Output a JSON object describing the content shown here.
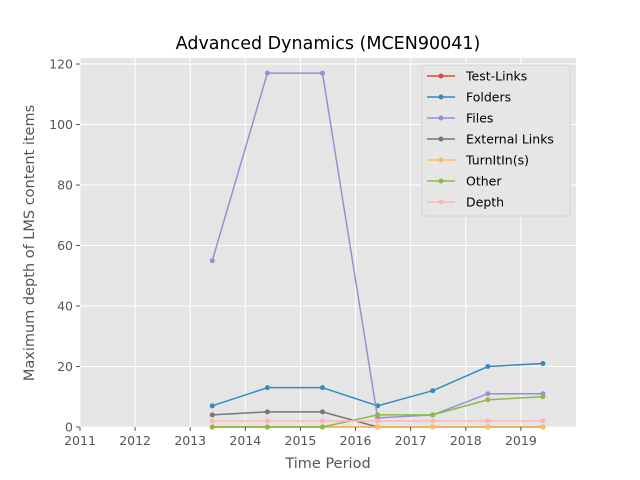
{
  "chart_data": {
    "type": "line",
    "title": "Advanced Dynamics (MCEN90041)",
    "xlabel": "Time Period",
    "ylabel": "Maximum depth of LMS content items",
    "xlim": [
      2011,
      2020
    ],
    "ylim": [
      0,
      122
    ],
    "x_ticks": [
      2011,
      2012,
      2013,
      2014,
      2015,
      2016,
      2017,
      2018,
      2019
    ],
    "y_ticks": [
      0,
      20,
      40,
      60,
      80,
      100,
      120
    ],
    "grid": true,
    "legend_position": "upper-right",
    "x": [
      2013.4,
      2014.4,
      2015.4,
      2016.4,
      2017.4,
      2018.4,
      2019.4
    ],
    "series": [
      {
        "name": "Test-Links",
        "color": "#E24A33",
        "values": [
          0,
          0,
          0,
          0,
          0,
          0,
          0
        ]
      },
      {
        "name": "Folders",
        "color": "#348ABD",
        "values": [
          7,
          13,
          13,
          7,
          12,
          20,
          21
        ]
      },
      {
        "name": "Files",
        "color": "#988ED5",
        "values": [
          55,
          117,
          117,
          3,
          4,
          11,
          11
        ]
      },
      {
        "name": "External Links",
        "color": "#777777",
        "values": [
          4,
          5,
          5,
          0,
          0,
          0,
          0
        ]
      },
      {
        "name": "TurnItIn(s)",
        "color": "#FBC15E",
        "values": [
          0,
          0,
          0,
          0,
          0,
          0,
          0
        ]
      },
      {
        "name": "Other",
        "color": "#8EBA42",
        "values": [
          0,
          0,
          0,
          4,
          4,
          9,
          10
        ]
      },
      {
        "name": "Depth",
        "color": "#FFB5B8",
        "values": [
          2,
          2,
          2,
          2,
          2,
          2,
          2
        ]
      }
    ]
  }
}
